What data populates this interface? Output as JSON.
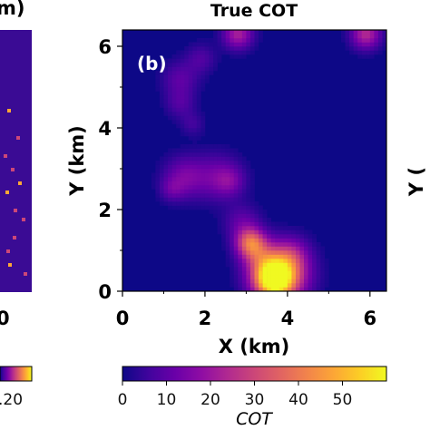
{
  "left_panel": {
    "title_fragment": "m)",
    "x_tick_fragment": "0",
    "colorbar_tick_fragment": ".20"
  },
  "chart_data": {
    "type": "heatmap",
    "title": "True COT",
    "panel_label": "(b)",
    "xlabel": "X (km)",
    "ylabel": "Y (km)",
    "xlim": [
      0,
      6.4
    ],
    "ylim": [
      0,
      6.4
    ],
    "xticks": [
      0,
      2,
      4,
      6
    ],
    "yticks": [
      0,
      2,
      4,
      6
    ],
    "colormap": "plasma",
    "background_color": "#0d0887",
    "colorbar": {
      "label": "COT",
      "range": [
        0,
        60
      ],
      "ticks": [
        0,
        10,
        20,
        30,
        40,
        50
      ]
    },
    "cloud_blobs": [
      {
        "x": 3.8,
        "y": 0.4,
        "radius_km": 0.45,
        "cot": 48
      },
      {
        "x": 3.65,
        "y": 0.3,
        "radius_km": 0.3,
        "cot": 38
      },
      {
        "x": 3.1,
        "y": 1.2,
        "radius_km": 0.25,
        "cot": 32
      },
      {
        "x": 3.3,
        "y": 0.9,
        "radius_km": 0.3,
        "cot": 14
      },
      {
        "x": 2.9,
        "y": 1.7,
        "radius_km": 0.3,
        "cot": 10
      },
      {
        "x": 1.5,
        "y": 2.8,
        "radius_km": 0.35,
        "cot": 14
      },
      {
        "x": 2.3,
        "y": 2.8,
        "radius_km": 0.4,
        "cot": 12
      },
      {
        "x": 2.6,
        "y": 2.7,
        "radius_km": 0.25,
        "cot": 10
      },
      {
        "x": 1.2,
        "y": 2.5,
        "radius_km": 0.2,
        "cot": 8
      },
      {
        "x": 1.4,
        "y": 5.2,
        "radius_km": 0.3,
        "cot": 10
      },
      {
        "x": 1.9,
        "y": 5.7,
        "radius_km": 0.25,
        "cot": 8
      },
      {
        "x": 1.4,
        "y": 4.6,
        "radius_km": 0.25,
        "cot": 8
      },
      {
        "x": 1.7,
        "y": 4.1,
        "radius_km": 0.2,
        "cot": 6
      },
      {
        "x": 2.8,
        "y": 6.3,
        "radius_km": 0.25,
        "cot": 22
      },
      {
        "x": 5.9,
        "y": 6.3,
        "radius_km": 0.25,
        "cot": 24
      },
      {
        "x": 4.1,
        "y": 0.9,
        "radius_km": 0.3,
        "cot": 12
      }
    ]
  }
}
